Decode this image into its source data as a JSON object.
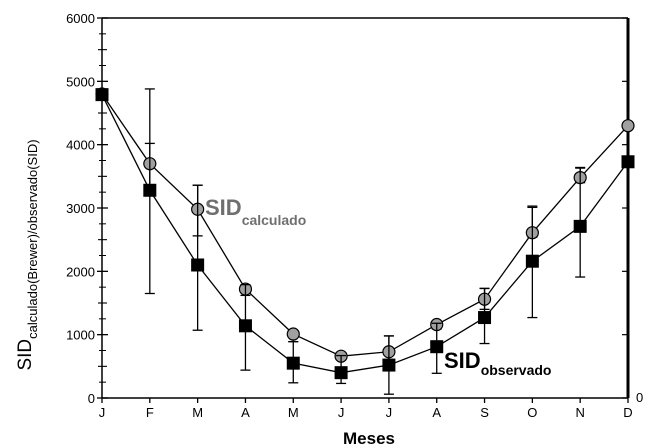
{
  "chart_data": {
    "type": "line",
    "title": "",
    "xlabel": "Meses",
    "ylabel_main": "SID",
    "ylabel_sub": "calculado(Brewer)/observado(SID)",
    "categories": [
      "J",
      "F",
      "M",
      "A",
      "M",
      "J",
      "J",
      "A",
      "S",
      "O",
      "N",
      "D"
    ],
    "ylim": [
      0,
      6000
    ],
    "yticks": [
      0,
      1000,
      2000,
      3000,
      4000,
      5000,
      6000
    ],
    "right_axis_label": "0",
    "grid": false,
    "colors": {
      "calculado": "#a0a0a0",
      "observado": "#000000",
      "line": "#000000"
    },
    "series": [
      {
        "name": "calculado",
        "label_main": "SID",
        "label_sub": "calculado",
        "marker": "circle",
        "values": [
          4800,
          3700,
          2980,
          1720,
          1010,
          660,
          730,
          1160,
          1560,
          2610,
          3480,
          4300
        ],
        "err_low": [
          null,
          3330,
          2560,
          1620,
          890,
          620,
          470,
          1090,
          1400,
          2540,
          3400,
          null
        ],
        "err_high": [
          null,
          4020,
          3360,
          1780,
          1060,
          680,
          980,
          1200,
          1730,
          3030,
          3640,
          null
        ]
      },
      {
        "name": "observado",
        "label_main": "SID",
        "label_sub": "observado",
        "marker": "square",
        "values": [
          4790,
          3280,
          2100,
          1140,
          550,
          400,
          520,
          810,
          1270,
          2160,
          2710,
          3730
        ],
        "err_low": [
          null,
          1650,
          1070,
          440,
          240,
          230,
          60,
          390,
          860,
          1270,
          1910,
          null
        ],
        "err_high": [
          null,
          4880,
          3360,
          1790,
          890,
          670,
          980,
          1180,
          1730,
          3010,
          3630,
          null
        ]
      }
    ]
  }
}
